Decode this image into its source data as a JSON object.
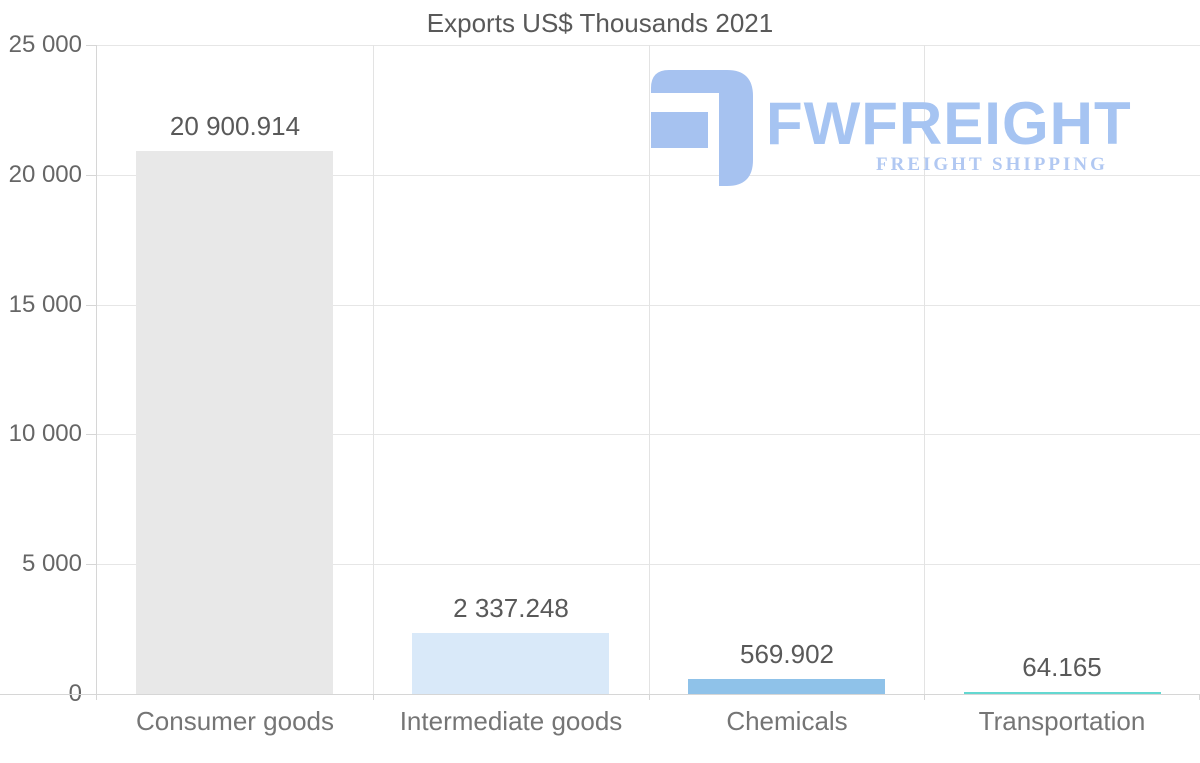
{
  "title": "Exports US$ Thousands 2021",
  "logo": {
    "name": "FWFREIGHT",
    "tagline": "FREIGHT SHIPPING",
    "icon_color": "#a6c2f0",
    "name_color": "#a6c4f2",
    "tagline_color": "#b1c8f2"
  },
  "colors": {
    "background": "#ffffff",
    "gridline": "#e6e6e6",
    "axis": "#d6d6d6",
    "title_text": "#595959",
    "ytick_text": "#666666",
    "category_text": "#757575",
    "value_text": "#595959"
  },
  "chart_data": {
    "type": "bar",
    "title": "Exports US$ Thousands 2021",
    "categories": [
      "Consumer goods",
      "Intermediate goods",
      "Chemicals",
      "Transportation"
    ],
    "values": [
      20900.914,
      2337.248,
      569.902,
      64.165
    ],
    "value_labels": [
      "20 900.914",
      "2 337.248",
      "569.902",
      "64.165"
    ],
    "bar_colors": [
      "#e8e8e8",
      "#d9e9f9",
      "#8fc2e9",
      "#63d8d1"
    ],
    "xlabel": "",
    "ylabel": "",
    "ylim": [
      0,
      25000
    ],
    "ytick_interval": 5000,
    "ytick_labels": [
      "0",
      "5 000",
      "10 000",
      "15 000",
      "20 000",
      "25 000"
    ],
    "grid": true,
    "legend": false
  }
}
